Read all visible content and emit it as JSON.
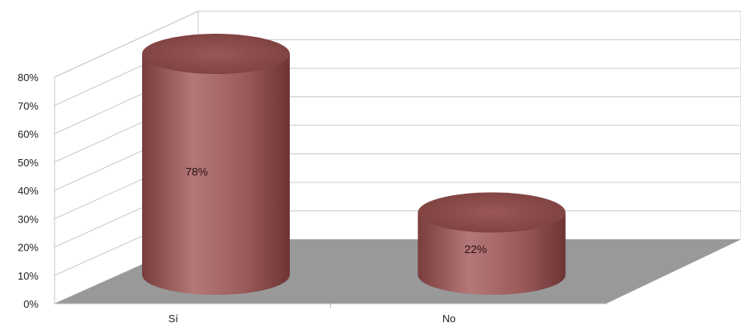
{
  "chart_data": {
    "type": "bar",
    "style": "3d-cylinder",
    "categories": [
      "Sí",
      "No"
    ],
    "values": [
      78,
      22
    ],
    "data_labels": [
      "78%",
      "22%"
    ],
    "y_ticks": [
      "0%",
      "10%",
      "20%",
      "30%",
      "40%",
      "50%",
      "60%",
      "70%",
      "80%"
    ],
    "ylim": [
      0,
      80
    ],
    "grid": true,
    "legend": "none",
    "colors": {
      "bar": "#a05f5f",
      "bar_top": "#8c4a4a",
      "floor": "#999999",
      "grid": "#c8c8c8"
    }
  }
}
